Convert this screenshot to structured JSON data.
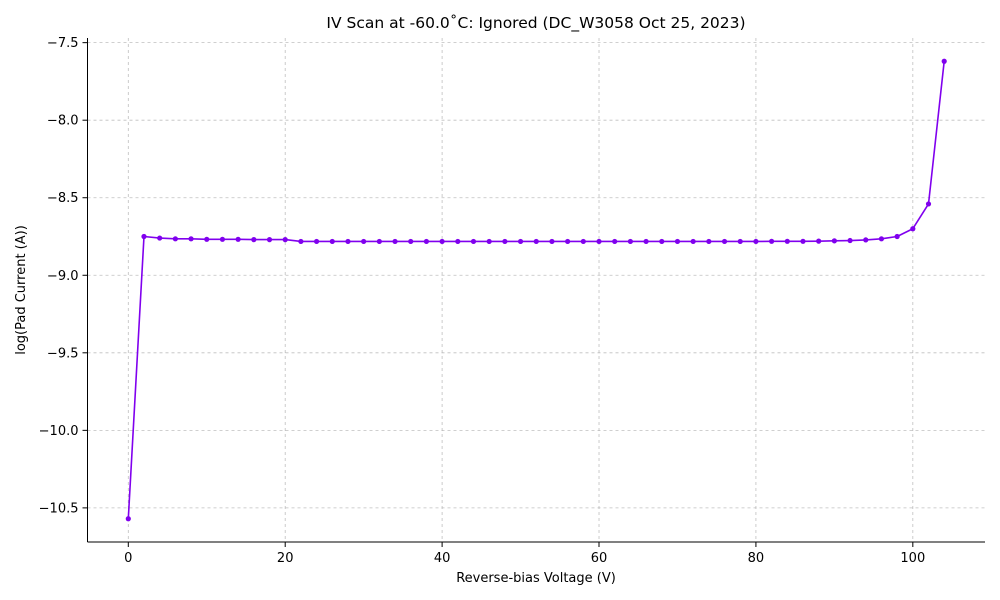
{
  "chart_data": {
    "type": "line",
    "title": "IV Scan at -60.0˚C: Ignored (DC_W3058 Oct 25, 2023)",
    "xlabel": "Reverse-bias Voltage (V)",
    "ylabel": "log(Pad Current (A))",
    "xlim": [
      -5.2,
      109.2
    ],
    "ylim": [
      -10.72,
      -7.47
    ],
    "xticks": [
      0,
      20,
      40,
      60,
      80,
      100
    ],
    "xtick_labels": [
      "0",
      "20",
      "40",
      "60",
      "80",
      "100"
    ],
    "yticks": [
      -7.5,
      -8.0,
      -8.5,
      -9.0,
      -9.5,
      -10.0,
      -10.5
    ],
    "ytick_labels": [
      "−7.5",
      "−8.0",
      "−8.5",
      "−9.0",
      "−9.5",
      "−10.0",
      "−10.5"
    ],
    "grid": true,
    "series": [
      {
        "color": "#8000ee",
        "x": [
          0,
          2,
          4,
          6,
          8,
          10,
          12,
          14,
          16,
          18,
          20,
          22,
          24,
          26,
          28,
          30,
          32,
          34,
          36,
          38,
          40,
          42,
          44,
          46,
          48,
          50,
          52,
          54,
          56,
          58,
          60,
          62,
          64,
          66,
          68,
          70,
          72,
          74,
          76,
          78,
          80,
          82,
          84,
          86,
          88,
          90,
          92,
          94,
          96,
          98,
          100,
          102,
          104
        ],
        "y": [
          -10.57,
          -8.75,
          -8.76,
          -8.765,
          -8.765,
          -8.768,
          -8.768,
          -8.768,
          -8.77,
          -8.77,
          -8.77,
          -8.782,
          -8.782,
          -8.782,
          -8.782,
          -8.782,
          -8.782,
          -8.782,
          -8.782,
          -8.782,
          -8.782,
          -8.782,
          -8.782,
          -8.782,
          -8.782,
          -8.782,
          -8.782,
          -8.782,
          -8.782,
          -8.782,
          -8.782,
          -8.782,
          -8.782,
          -8.782,
          -8.782,
          -8.782,
          -8.782,
          -8.782,
          -8.782,
          -8.782,
          -8.782,
          -8.781,
          -8.781,
          -8.781,
          -8.78,
          -8.778,
          -8.776,
          -8.772,
          -8.765,
          -8.75,
          -8.7,
          -8.54,
          -7.62
        ]
      }
    ]
  }
}
